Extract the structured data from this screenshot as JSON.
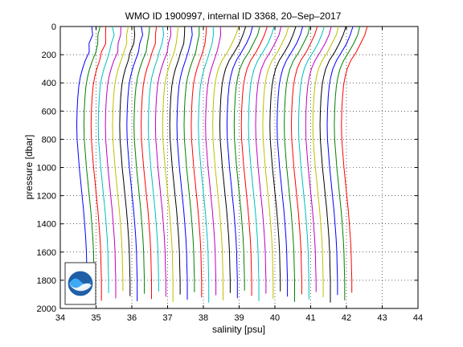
{
  "chart_data": {
    "type": "line",
    "title": "WMO ID 1900997, internal ID 3368, 20–Sep–2017",
    "xlabel": "salinity [psu]",
    "ylabel": "pressure [dbar]",
    "xlim": [
      34,
      44
    ],
    "ylim": [
      0,
      2000
    ],
    "y_reversed": true,
    "grid": true,
    "x_ticks": [
      "34",
      "35",
      "36",
      "37",
      "38",
      "39",
      "40",
      "41",
      "42",
      "43",
      "44"
    ],
    "y_ticks": [
      "0",
      "200",
      "400",
      "600",
      "800",
      "1000",
      "1200",
      "1400",
      "1600",
      "1800",
      "2000"
    ],
    "offset_per_profile_psu": 0.2,
    "color_cycle": [
      "#0000ff",
      "#008000",
      "#ff0000",
      "#00bfbf",
      "#bf00bf",
      "#bfbf00",
      "#000000"
    ],
    "base_profile": {
      "pressure": [
        0,
        60,
        120,
        180,
        240,
        300,
        360,
        420,
        500,
        600,
        700,
        800,
        900,
        1000,
        1100,
        1200,
        1300,
        1400,
        1500,
        1600,
        1700,
        1800,
        1860
      ],
      "salinity": [
        34.88,
        34.88,
        34.84,
        34.78,
        34.7,
        34.62,
        34.56,
        34.52,
        34.49,
        34.47,
        34.46,
        34.47,
        34.5,
        34.53,
        34.57,
        34.61,
        34.65,
        34.68,
        34.71,
        34.73,
        34.74,
        34.75,
        34.75
      ]
    },
    "series_count": 38,
    "logo": "noaa-logo"
  }
}
